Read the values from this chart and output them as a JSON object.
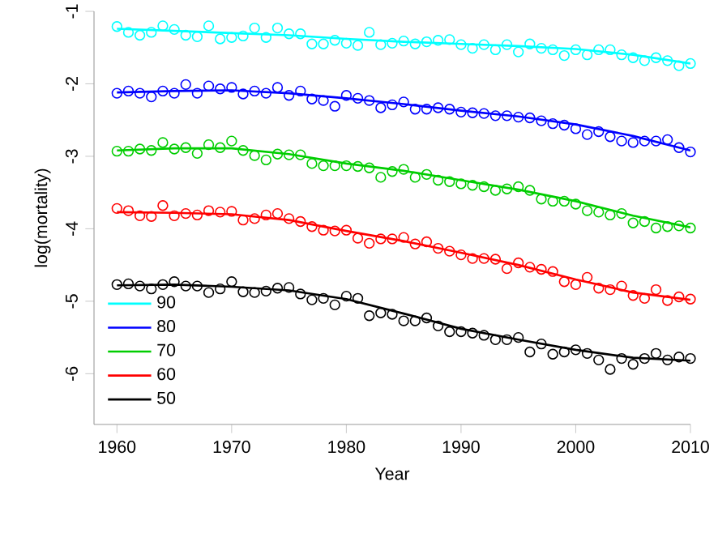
{
  "chart_data": {
    "type": "scatter",
    "xlabel": "Year",
    "ylabel": "log(mortality)",
    "x": [
      1960,
      1961,
      1962,
      1963,
      1964,
      1965,
      1966,
      1967,
      1968,
      1969,
      1970,
      1971,
      1972,
      1973,
      1974,
      1975,
      1976,
      1977,
      1978,
      1979,
      1980,
      1981,
      1982,
      1983,
      1984,
      1985,
      1986,
      1987,
      1988,
      1989,
      1990,
      1991,
      1992,
      1993,
      1994,
      1995,
      1996,
      1997,
      1998,
      1999,
      2000,
      2001,
      2002,
      2003,
      2004,
      2005,
      2006,
      2007,
      2008,
      2009,
      2010
    ],
    "xlim": [
      1958,
      2010
    ],
    "ylim": [
      -6.7,
      -1
    ],
    "xticks": [
      1960,
      1970,
      1980,
      1990,
      2000,
      2010
    ],
    "yticks": [
      -1,
      -2,
      -3,
      -4,
      -5,
      -6
    ],
    "legend": "bottom left",
    "marker": "circle",
    "series": [
      {
        "name": "90",
        "type": "line",
        "marker": "none",
        "color": "#00ffff",
        "x": [
          1960,
          1965,
          1970,
          1975,
          1980,
          1985,
          1990,
          1995,
          2000,
          2005,
          2010
        ],
        "values": [
          -1.24,
          -1.27,
          -1.3,
          -1.33,
          -1.38,
          -1.42,
          -1.45,
          -1.48,
          -1.52,
          -1.6,
          -1.72
        ]
      },
      {
        "name": "80",
        "type": "line",
        "marker": "none",
        "color": "#0000ff",
        "x": [
          1960,
          1965,
          1970,
          1975,
          1980,
          1985,
          1990,
          1995,
          2000,
          2005,
          2010
        ],
        "values": [
          -2.12,
          -2.1,
          -2.09,
          -2.13,
          -2.2,
          -2.28,
          -2.37,
          -2.45,
          -2.56,
          -2.72,
          -2.92
        ]
      },
      {
        "name": "70",
        "type": "line",
        "marker": "none",
        "color": "#00cd00",
        "x": [
          1960,
          1965,
          1970,
          1975,
          1980,
          1985,
          1990,
          1995,
          2000,
          2005,
          2010
        ],
        "values": [
          -2.92,
          -2.89,
          -2.89,
          -2.97,
          -3.1,
          -3.2,
          -3.33,
          -3.46,
          -3.62,
          -3.82,
          -3.98
        ]
      },
      {
        "name": "60",
        "type": "line",
        "marker": "none",
        "color": "#ff0000",
        "x": [
          1960,
          1965,
          1970,
          1975,
          1980,
          1985,
          1990,
          1995,
          2000,
          2005,
          2010
        ],
        "values": [
          -3.77,
          -3.78,
          -3.8,
          -3.88,
          -4.03,
          -4.17,
          -4.33,
          -4.5,
          -4.7,
          -4.88,
          -4.98
        ]
      },
      {
        "name": "50",
        "type": "line",
        "marker": "none",
        "color": "#000000",
        "x": [
          1960,
          1965,
          1970,
          1975,
          1980,
          1985,
          1990,
          1995,
          2000,
          2005,
          2010
        ],
        "values": [
          -4.78,
          -4.77,
          -4.8,
          -4.85,
          -4.97,
          -5.17,
          -5.38,
          -5.53,
          -5.67,
          -5.78,
          -5.82
        ]
      },
      {
        "color": "#00ffff",
        "values": [
          -1.21,
          -1.29,
          -1.33,
          -1.29,
          -1.2,
          -1.25,
          -1.33,
          -1.35,
          -1.2,
          -1.38,
          -1.36,
          -1.34,
          -1.23,
          -1.36,
          -1.23,
          -1.31,
          -1.31,
          -1.45,
          -1.45,
          -1.4,
          -1.44,
          -1.47,
          -1.29,
          -1.46,
          -1.44,
          -1.41,
          -1.45,
          -1.42,
          -1.4,
          -1.39,
          -1.46,
          -1.51,
          -1.46,
          -1.53,
          -1.46,
          -1.56,
          -1.45,
          -1.51,
          -1.53,
          -1.61,
          -1.53,
          -1.6,
          -1.53,
          -1.53,
          -1.6,
          -1.64,
          -1.68,
          -1.64,
          -1.68,
          -1.75,
          -1.72
        ]
      },
      {
        "color": "#0000ff",
        "values": [
          -2.13,
          -2.1,
          -2.13,
          -2.18,
          -2.1,
          -2.13,
          -2.01,
          -2.13,
          -2.03,
          -2.07,
          -2.05,
          -2.14,
          -2.1,
          -2.13,
          -2.05,
          -2.16,
          -2.1,
          -2.21,
          -2.23,
          -2.31,
          -2.16,
          -2.2,
          -2.23,
          -2.33,
          -2.29,
          -2.25,
          -2.35,
          -2.35,
          -2.33,
          -2.35,
          -2.39,
          -2.4,
          -2.41,
          -2.44,
          -2.44,
          -2.46,
          -2.47,
          -2.51,
          -2.55,
          -2.57,
          -2.62,
          -2.7,
          -2.66,
          -2.73,
          -2.79,
          -2.81,
          -2.79,
          -2.79,
          -2.77,
          -2.88,
          -2.94
        ]
      },
      {
        "color": "#00cd00",
        "values": [
          -2.93,
          -2.93,
          -2.9,
          -2.92,
          -2.81,
          -2.9,
          -2.88,
          -2.96,
          -2.84,
          -2.88,
          -2.79,
          -2.92,
          -2.99,
          -3.05,
          -2.97,
          -2.98,
          -2.98,
          -3.1,
          -3.13,
          -3.13,
          -3.13,
          -3.14,
          -3.16,
          -3.29,
          -3.21,
          -3.18,
          -3.29,
          -3.25,
          -3.33,
          -3.35,
          -3.38,
          -3.4,
          -3.42,
          -3.47,
          -3.45,
          -3.42,
          -3.47,
          -3.59,
          -3.62,
          -3.62,
          -3.66,
          -3.75,
          -3.77,
          -3.81,
          -3.79,
          -3.92,
          -3.9,
          -3.99,
          -3.97,
          -3.96,
          -3.99
        ]
      },
      {
        "color": "#ff0000",
        "values": [
          -3.72,
          -3.75,
          -3.82,
          -3.83,
          -3.68,
          -3.82,
          -3.79,
          -3.81,
          -3.75,
          -3.77,
          -3.76,
          -3.88,
          -3.86,
          -3.81,
          -3.79,
          -3.86,
          -3.9,
          -3.97,
          -4.02,
          -4.03,
          -4.02,
          -4.13,
          -4.2,
          -4.14,
          -4.14,
          -4.12,
          -4.21,
          -4.18,
          -4.27,
          -4.31,
          -4.36,
          -4.41,
          -4.41,
          -4.42,
          -4.55,
          -4.47,
          -4.53,
          -4.56,
          -4.59,
          -4.73,
          -4.77,
          -4.67,
          -4.82,
          -4.84,
          -4.79,
          -4.92,
          -4.96,
          -4.84,
          -4.99,
          -4.94,
          -4.97
        ]
      },
      {
        "color": "#000000",
        "values": [
          -4.77,
          -4.76,
          -4.79,
          -4.83,
          -4.77,
          -4.73,
          -4.79,
          -4.79,
          -4.88,
          -4.83,
          -4.73,
          -4.87,
          -4.88,
          -4.86,
          -4.82,
          -4.81,
          -4.9,
          -4.98,
          -4.96,
          -5.05,
          -4.93,
          -4.96,
          -5.2,
          -5.16,
          -5.18,
          -5.27,
          -5.27,
          -5.23,
          -5.34,
          -5.42,
          -5.42,
          -5.44,
          -5.47,
          -5.53,
          -5.53,
          -5.5,
          -5.7,
          -5.59,
          -5.73,
          -5.7,
          -5.67,
          -5.72,
          -5.81,
          -5.94,
          -5.79,
          -5.87,
          -5.79,
          -5.72,
          -5.81,
          -5.77,
          -5.79
        ]
      }
    ]
  }
}
